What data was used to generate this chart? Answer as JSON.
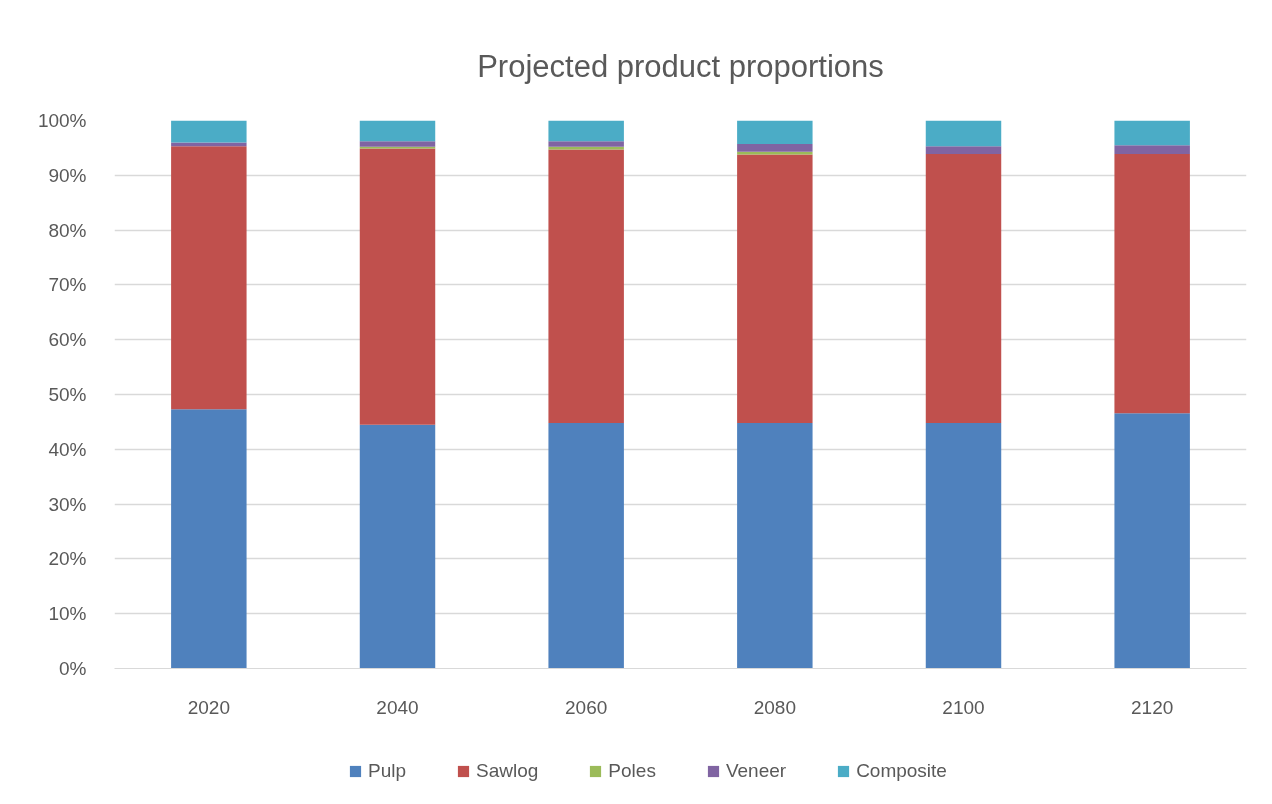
{
  "chart_data": {
    "type": "bar",
    "title": "Projected product proportions",
    "categories": [
      "2020",
      "2040",
      "2060",
      "2080",
      "2100",
      "2120"
    ],
    "stacked": true,
    "series": [
      {
        "name": "Pulp",
        "color": "#4f81bd",
        "values": [
          47.3,
          44.5,
          44.8,
          44.8,
          44.8,
          46.6
        ]
      },
      {
        "name": "Sawlog",
        "color": "#c0504d",
        "values": [
          48.0,
          50.4,
          49.9,
          49.0,
          49.1,
          47.3
        ]
      },
      {
        "name": "Poles",
        "color": "#9bbb59",
        "values": [
          0,
          0.3,
          0.5,
          0.5,
          0,
          0
        ]
      },
      {
        "name": "Veneer",
        "color": "#8064a2",
        "values": [
          0.7,
          1.0,
          1.0,
          1.4,
          1.4,
          1.6
        ]
      },
      {
        "name": "Composite",
        "color": "#4bacc6",
        "values": [
          4.0,
          3.8,
          3.8,
          4.3,
          4.7,
          4.5
        ]
      }
    ],
    "ylim": [
      0,
      100
    ],
    "yticks": [
      {
        "value": 0,
        "label": "0%"
      },
      {
        "value": 10,
        "label": "10%"
      },
      {
        "value": 20,
        "label": "20%"
      },
      {
        "value": 30,
        "label": "30%"
      },
      {
        "value": 40,
        "label": "40%"
      },
      {
        "value": 50,
        "label": "50%"
      },
      {
        "value": 60,
        "label": "60%"
      },
      {
        "value": 70,
        "label": "70%"
      },
      {
        "value": 80,
        "label": "80%"
      },
      {
        "value": 90,
        "label": "90%"
      },
      {
        "value": 100,
        "label": "100%"
      }
    ],
    "grid": "y",
    "legend": "bottom"
  }
}
